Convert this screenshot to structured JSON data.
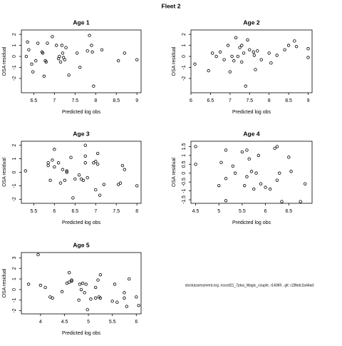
{
  "title": "Fleet 2",
  "footnote": "stockassessment.org, nscod21_7plus_Magic_couple, r14069 , git: c28bdc2a44ad",
  "chart_data": [
    {
      "type": "scatter",
      "title": "Age 1",
      "x_label": "Predicted log obs",
      "y_label": "OSA residual",
      "xlim": [
        6.2,
        9.1
      ],
      "ylim": [
        -3.3,
        2.4
      ],
      "xticks": [
        6.5,
        7.0,
        7.5,
        8.0,
        8.5,
        9.0
      ],
      "yticks": [
        -2,
        -1,
        0,
        1,
        2
      ],
      "x": [
        6.32,
        6.35,
        6.38,
        6.45,
        6.48,
        6.55,
        6.6,
        6.7,
        6.72,
        6.75,
        6.78,
        6.8,
        6.83,
        6.95,
        7.05,
        7.1,
        7.12,
        7.15,
        7.18,
        7.2,
        7.22,
        7.25,
        7.28,
        7.35,
        7.55,
        7.62,
        7.8,
        7.85,
        7.9,
        7.92,
        7.95,
        8.15,
        8.55,
        8.7,
        9.0
      ],
      "y": [
        0.0,
        1.3,
        0.6,
        -0.7,
        -1.4,
        -0.4,
        1.2,
        0.4,
        0.3,
        -1.8,
        -0.4,
        -0.5,
        1.2,
        1.8,
        1.0,
        -0.2,
        0.0,
        -0.5,
        1.0,
        0.3,
        -0.1,
        -0.3,
        0.8,
        -1.7,
        0.3,
        -1.0,
        0.5,
        1.9,
        1.0,
        0.4,
        -2.7,
        0.6,
        -0.4,
        0.3,
        -0.3
      ]
    },
    {
      "type": "scatter",
      "title": "Age 2",
      "x_label": "Predicted log obs",
      "y_label": "OSA residual",
      "xlim": [
        6.0,
        9.1
      ],
      "ylim": [
        -3.3,
        2.4
      ],
      "xticks": [
        6.0,
        6.5,
        7.0,
        7.5,
        8.0,
        8.5,
        9.0
      ],
      "yticks": [
        -2,
        -1,
        0,
        1,
        2
      ],
      "x": [
        6.1,
        6.45,
        6.55,
        6.65,
        6.75,
        6.85,
        6.95,
        7.0,
        7.05,
        7.1,
        7.15,
        7.2,
        7.25,
        7.3,
        7.3,
        7.35,
        7.4,
        7.45,
        7.5,
        7.6,
        7.62,
        7.65,
        7.7,
        7.8,
        8.0,
        8.05,
        8.2,
        8.4,
        8.5,
        8.65,
        8.7,
        9.0,
        9.0
      ],
      "y": [
        -0.7,
        -1.3,
        0.3,
        0.0,
        0.4,
        -0.3,
        1.0,
        -1.4,
        0.0,
        -0.4,
        1.7,
        0.0,
        0.8,
        1.0,
        -0.5,
        0.3,
        -2.7,
        1.5,
        0.6,
        0.4,
        0.1,
        -1.2,
        0.5,
        -0.3,
        0.3,
        -0.6,
        0.1,
        0.6,
        1.0,
        1.4,
        0.9,
        0.7,
        -0.1
      ]
    },
    {
      "type": "scatter",
      "title": "Age 3",
      "x_label": "Predicted log obs",
      "y_label": "OSA residual",
      "xlim": [
        5.2,
        8.1
      ],
      "ylim": [
        -2.3,
        2.3
      ],
      "xticks": [
        5.5,
        6.0,
        6.5,
        7.0,
        7.5,
        8.0
      ],
      "yticks": [
        -2,
        -1,
        0,
        1,
        2
      ],
      "x": [
        5.3,
        5.85,
        5.85,
        5.9,
        5.95,
        6.0,
        6.0,
        6.1,
        6.15,
        6.2,
        6.25,
        6.3,
        6.3,
        6.4,
        6.45,
        6.5,
        6.6,
        6.65,
        6.7,
        6.75,
        6.75,
        6.8,
        6.75,
        6.95,
        7.0,
        7.0,
        7.05,
        7.05,
        7.1,
        7.2,
        7.55,
        7.6,
        7.65,
        7.7,
        8.0
      ],
      "y": [
        0.1,
        0.7,
        0.5,
        -0.6,
        0.9,
        1.7,
        0.4,
        0.7,
        -0.8,
        0.2,
        -0.6,
        0.1,
        0.0,
        1.1,
        -1.9,
        -0.5,
        -0.2,
        -0.5,
        -0.6,
        0.7,
        1.2,
        -0.4,
        2.0,
        0.7,
        0.8,
        -1.3,
        1.4,
        0.6,
        -1.7,
        -0.9,
        -0.9,
        -0.8,
        0.5,
        0.2,
        -1.0
      ]
    },
    {
      "type": "scatter",
      "title": "Age 4",
      "x_label": "Predicted log obs",
      "y_label": "OSA residual",
      "xlim": [
        4.4,
        7.0
      ],
      "ylim": [
        -1.7,
        1.8
      ],
      "xticks": [
        4.5,
        5.0,
        5.5,
        6.0,
        6.5
      ],
      "yticks": [
        -1.5,
        -1,
        -0.5,
        0,
        0.5,
        1,
        1.5
      ],
      "x": [
        4.5,
        4.5,
        5.0,
        5.05,
        5.15,
        5.15,
        5.15,
        5.3,
        5.35,
        5.5,
        5.55,
        5.6,
        5.6,
        5.65,
        5.7,
        5.75,
        5.8,
        5.85,
        5.9,
        6.0,
        6.1,
        6.2,
        6.25,
        6.25,
        6.3,
        6.35,
        6.5,
        6.55,
        6.75,
        6.85
      ],
      "y": [
        1.5,
        0.5,
        -0.7,
        0.6,
        1.3,
        -0.3,
        -1.55,
        0.4,
        0.0,
        1.2,
        -0.7,
        1.3,
        -0.2,
        0.8,
        0.1,
        -0.9,
        0.0,
        1.0,
        -0.6,
        -0.8,
        -0.9,
        1.4,
        -0.4,
        1.5,
        0.0,
        -1.6,
        0.9,
        0.1,
        -1.6,
        -0.6
      ]
    },
    {
      "type": "scatter",
      "title": "Age 5",
      "x_label": "Predicted log obs",
      "y_label": "OSA residual",
      "xlim": [
        3.6,
        6.1
      ],
      "ylim": [
        -2.3,
        3.5
      ],
      "xticks": [
        4.0,
        4.5,
        5.0,
        5.5,
        6.0
      ],
      "yticks": [
        -2,
        -1,
        0,
        1,
        2,
        3
      ],
      "x": [
        3.75,
        3.95,
        4.0,
        4.1,
        4.2,
        4.25,
        4.45,
        4.55,
        4.6,
        4.6,
        4.65,
        4.65,
        4.8,
        4.82,
        4.85,
        4.88,
        4.92,
        4.95,
        4.98,
        5.05,
        5.15,
        5.15,
        5.2,
        5.22,
        5.25,
        5.25,
        5.5,
        5.55,
        5.6,
        5.75,
        5.75,
        5.8,
        5.85,
        6.0,
        6.05
      ],
      "y": [
        0.5,
        3.3,
        0.4,
        0.2,
        -0.7,
        -0.8,
        -0.2,
        0.6,
        1.6,
        0.7,
        0.9,
        0.8,
        -1.0,
        0.5,
        0.0,
        0.6,
        -0.3,
        0.5,
        -1.9,
        -0.9,
        0.2,
        -0.8,
        0.9,
        -0.7,
        1.4,
        -0.8,
        -1.1,
        0.5,
        -1.2,
        -0.3,
        -0.8,
        -1.6,
        1.0,
        -0.7,
        -1.5
      ]
    }
  ]
}
